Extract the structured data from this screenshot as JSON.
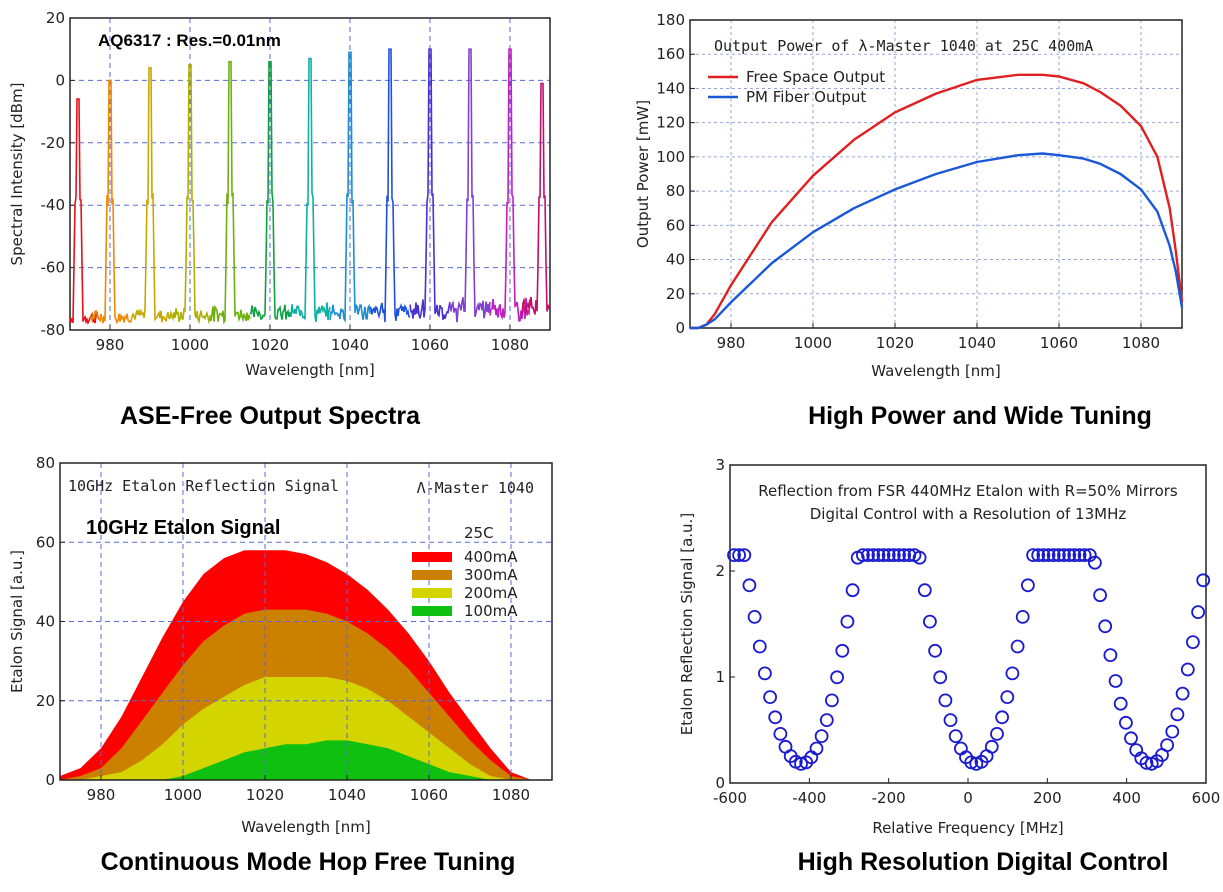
{
  "colors": {
    "spectra": [
      "#e8101a",
      "#f08a00",
      "#c8a800",
      "#b0b000",
      "#6fb010",
      "#10a040",
      "#10b0a0",
      "#1a90d0",
      "#2050e0",
      "#4a30d0",
      "#8040d0",
      "#c020c0",
      "#c0106a"
    ],
    "free_space": "#e02020",
    "pm_fiber": "#1a58d8",
    "etalon_400": "#ff0000",
    "etalon_300": "#cc8000",
    "etalon_200": "#d4d400",
    "etalon_100": "#10c010",
    "digital": "#1a1ad0"
  },
  "chart_data": [
    {
      "type": "line",
      "caption": "ASE-Free Output Spectra",
      "annotation": "AQ6317 : Res.=0.01nm",
      "xlabel": "Wavelength [nm]",
      "ylabel": "Spectral Intensity [dBm]",
      "xlim": [
        970,
        1090
      ],
      "ylim": [
        -80,
        20
      ],
      "xticks": [
        "980",
        "1000",
        "1020",
        "1040",
        "1060",
        "1080"
      ],
      "xtick_values": [
        980,
        1000,
        1020,
        1040,
        1060,
        1080
      ],
      "yticks": [
        "-80",
        "-60",
        "-40",
        "-20",
        "0",
        "20"
      ],
      "ytick_values": [
        -80,
        -60,
        -40,
        -20,
        0,
        20
      ],
      "grid": true,
      "peaks_x": [
        972,
        980,
        990,
        1000,
        1010,
        1020,
        1030,
        1040,
        1050,
        1060,
        1070,
        1080,
        1088
      ],
      "peaks_y": [
        -6,
        0,
        4,
        5,
        6,
        6,
        7,
        9,
        10,
        10,
        10,
        10,
        -1
      ],
      "noise_floor": -76
    },
    {
      "type": "line",
      "caption": "High Power and Wide Tuning",
      "title": "Output Power of λ-Master 1040 at 25C 400mA",
      "xlabel": "Wavelength [nm]",
      "ylabel": "Output  Power [mW]",
      "xlim": [
        970,
        1090
      ],
      "ylim": [
        0,
        180
      ],
      "xticks": [
        "980",
        "1000",
        "1020",
        "1040",
        "1060",
        "1080"
      ],
      "xtick_values": [
        980,
        1000,
        1020,
        1040,
        1060,
        1080
      ],
      "yticks": [
        "0",
        "20",
        "40",
        "60",
        "80",
        "100",
        "120",
        "140",
        "160",
        "180"
      ],
      "ytick_values": [
        0,
        20,
        40,
        60,
        80,
        100,
        120,
        140,
        160,
        180
      ],
      "grid": true,
      "legend": "top-left",
      "x": [
        970,
        972,
        974,
        976,
        980,
        990,
        1000,
        1010,
        1020,
        1030,
        1040,
        1050,
        1056,
        1060,
        1066,
        1070,
        1075,
        1080,
        1084,
        1087,
        1088.5,
        1090
      ],
      "series": [
        {
          "name": "Free Space Output",
          "values": [
            0,
            0,
            2,
            8,
            25,
            62,
            89,
            110,
            126,
            137,
            145,
            148,
            148,
            147,
            143,
            138,
            130,
            118,
            100,
            70,
            45,
            15
          ]
        },
        {
          "name": "PM Fiber Output",
          "values": [
            0,
            0,
            2,
            5,
            15,
            38,
            56,
            70,
            81,
            90,
            97,
            101,
            102,
            101,
            99,
            96,
            90,
            81,
            68,
            48,
            33,
            12
          ]
        }
      ]
    },
    {
      "type": "area",
      "caption": "Continuous Mode Hop Free Tuning",
      "title": "10GHz Etalon Reflection Signal",
      "brand": "Λ-Master 1040",
      "annotation": "10GHz Etalon Signal",
      "legend_title": "25C",
      "xlabel": "Wavelength [nm]",
      "ylabel": "Etalon Signal [a.u.]",
      "xlim": [
        970,
        1090
      ],
      "ylim": [
        0,
        80
      ],
      "xticks": [
        "980",
        "1000",
        "1020",
        "1040",
        "1060",
        "1080"
      ],
      "xtick_values": [
        980,
        1000,
        1020,
        1040,
        1060,
        1080
      ],
      "yticks": [
        "0",
        "20",
        "40",
        "60",
        "80"
      ],
      "ytick_values": [
        0,
        20,
        40,
        60,
        80
      ],
      "grid": true,
      "legend": "top-right",
      "x": [
        970,
        975,
        980,
        985,
        990,
        995,
        1000,
        1005,
        1010,
        1015,
        1020,
        1025,
        1030,
        1035,
        1040,
        1045,
        1050,
        1055,
        1060,
        1065,
        1070,
        1075,
        1080,
        1085,
        1090
      ],
      "series": [
        {
          "name": "400mA",
          "values": [
            1,
            3,
            8,
            16,
            26,
            36,
            45,
            52,
            56,
            58,
            58,
            58,
            57,
            55,
            52,
            48,
            43,
            37,
            30,
            22,
            15,
            8,
            2,
            0,
            0
          ]
        },
        {
          "name": "300mA",
          "values": [
            0,
            1,
            3,
            8,
            15,
            22,
            29,
            35,
            39,
            42,
            43,
            43,
            43,
            42,
            40,
            37,
            33,
            28,
            22,
            16,
            10,
            5,
            1,
            0,
            0
          ]
        },
        {
          "name": "200mA",
          "values": [
            0,
            0,
            1,
            2,
            5,
            9,
            14,
            18,
            21,
            24,
            26,
            26,
            26,
            26,
            25,
            23,
            20,
            16,
            12,
            8,
            4,
            1,
            0,
            0,
            0
          ]
        },
        {
          "name": "100mA",
          "values": [
            0,
            0,
            0,
            0,
            0,
            0,
            1,
            3,
            5,
            7,
            8,
            9,
            9,
            10,
            10,
            9,
            8,
            6,
            4,
            2,
            1,
            0,
            0,
            0,
            0
          ]
        }
      ]
    },
    {
      "type": "scatter",
      "caption": "High Resolution  Digital Control",
      "title": "Reflection from FSR 440MHz Etalon with  R=50% Mirrors",
      "subtitle": "Digital Control with a Resolution of 13MHz",
      "xlabel": "Relative Frequency [MHz]",
      "ylabel": "Etalon Reflection Signal [a.u.]",
      "xlim": [
        -600,
        600
      ],
      "ylim": [
        0,
        3
      ],
      "xticks": [
        "-600",
        "-400",
        "-200",
        "0",
        "200",
        "400",
        "600"
      ],
      "xtick_values": [
        -600,
        -400,
        -200,
        0,
        200,
        400,
        600
      ],
      "yticks": [
        "0",
        "1",
        "2",
        "3"
      ],
      "ytick_values": [
        0,
        1,
        2,
        3
      ],
      "grid": false,
      "fsr": 440,
      "center": 20,
      "step": 13,
      "max": 2.15,
      "min": 0.18
    }
  ]
}
